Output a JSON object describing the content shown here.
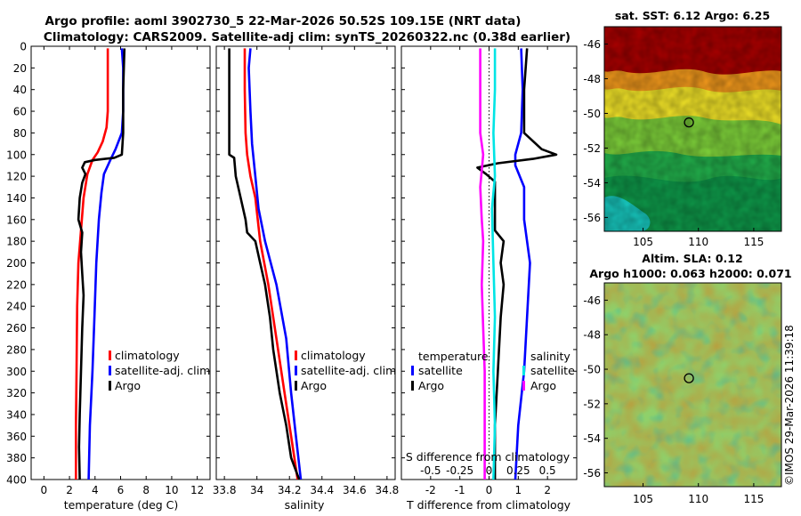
{
  "title_line1": "Argo profile: aoml 3902730_5 22-Mar-2026 50.52S 109.15E (NRT data)",
  "title_line2": "Climatology: CARS2009. Satellite-adj clim: synTS_20260322.nc (0.38d earlier)",
  "copyright": "©IMOS 29-Mar-2026 11:39:18",
  "colors": {
    "climatology": "#ff0000",
    "satellite": "#0000ff",
    "argo": "#000000",
    "sal_satellite": "#00e5e5",
    "sal_argo": "#ff00ff"
  },
  "chart_data": [
    {
      "id": "temperature",
      "type": "line",
      "xlabel": "temperature (deg C)",
      "ylabel": "",
      "xlim": [
        -1,
        13
      ],
      "ylim": [
        400,
        0
      ],
      "xticks": [
        0,
        2,
        4,
        6,
        8,
        10,
        12
      ],
      "xtick_labels": [
        "0",
        "2",
        "4",
        "6",
        "8",
        "10",
        "12"
      ],
      "yticks": [
        0,
        20,
        40,
        60,
        80,
        100,
        120,
        140,
        160,
        180,
        200,
        220,
        240,
        260,
        280,
        300,
        320,
        340,
        360,
        380,
        400
      ],
      "legend": [
        "climatology",
        "satellite-adj. clim",
        "Argo"
      ],
      "series": [
        {
          "name": "climatology",
          "color": "#ff0000",
          "points": [
            [
              5.0,
              2
            ],
            [
              5.0,
              20
            ],
            [
              5.0,
              60
            ],
            [
              4.9,
              75
            ],
            [
              4.6,
              88
            ],
            [
              4.2,
              98
            ],
            [
              3.8,
              105
            ],
            [
              3.4,
              118
            ],
            [
              3.1,
              140
            ],
            [
              2.9,
              170
            ],
            [
              2.7,
              200
            ],
            [
              2.6,
              240
            ],
            [
              2.55,
              300
            ],
            [
              2.5,
              350
            ],
            [
              2.5,
              400
            ]
          ]
        },
        {
          "name": "satellite-adj. clim",
          "color": "#0000ff",
          "points": [
            [
              6.1,
              2
            ],
            [
              6.2,
              20
            ],
            [
              6.2,
              60
            ],
            [
              6.1,
              80
            ],
            [
              5.6,
              95
            ],
            [
              5.2,
              105
            ],
            [
              4.7,
              118
            ],
            [
              4.5,
              135
            ],
            [
              4.3,
              160
            ],
            [
              4.1,
              200
            ],
            [
              3.95,
              250
            ],
            [
              3.8,
              300
            ],
            [
              3.6,
              350
            ],
            [
              3.5,
              400
            ]
          ]
        },
        {
          "name": "Argo",
          "color": "#000000",
          "points": [
            [
              6.3,
              2
            ],
            [
              6.2,
              40
            ],
            [
              6.2,
              80
            ],
            [
              6.1,
              100
            ],
            [
              5.5,
              103
            ],
            [
              4.0,
              105
            ],
            [
              3.2,
              107
            ],
            [
              3.0,
              112
            ],
            [
              3.25,
              118
            ],
            [
              3.0,
              126
            ],
            [
              2.8,
              140
            ],
            [
              2.7,
              160
            ],
            [
              3.0,
              172
            ],
            [
              2.9,
              190
            ],
            [
              3.0,
              210
            ],
            [
              3.1,
              230
            ],
            [
              3.0,
              260
            ],
            [
              2.9,
              300
            ],
            [
              2.8,
              340
            ],
            [
              2.75,
              370
            ],
            [
              2.8,
              400
            ]
          ]
        }
      ]
    },
    {
      "id": "salinity",
      "type": "line",
      "xlabel": "salinity",
      "xlim": [
        33.75,
        34.85
      ],
      "ylim": [
        400,
        0
      ],
      "xticks": [
        33.8,
        34.0,
        34.2,
        34.4,
        34.6,
        34.8
      ],
      "xtick_labels": [
        "33.8",
        "34",
        "34.2",
        "34.4",
        "34.6",
        "34.8"
      ],
      "legend": [
        "climatology",
        "satellite-adj. clim",
        "Argo"
      ],
      "series": [
        {
          "name": "climatology",
          "color": "#ff0000",
          "points": [
            [
              33.925,
              2
            ],
            [
              33.925,
              40
            ],
            [
              33.93,
              80
            ],
            [
              33.94,
              100
            ],
            [
              33.96,
              120
            ],
            [
              33.99,
              140
            ],
            [
              34.02,
              180
            ],
            [
              34.07,
              220
            ],
            [
              34.12,
              270
            ],
            [
              34.17,
              320
            ],
            [
              34.21,
              360
            ],
            [
              34.25,
              400
            ]
          ]
        },
        {
          "name": "satellite-adj. clim",
          "color": "#0000ff",
          "points": [
            [
              33.96,
              2
            ],
            [
              33.95,
              20
            ],
            [
              33.96,
              60
            ],
            [
              33.97,
              90
            ],
            [
              33.99,
              120
            ],
            [
              34.01,
              150
            ],
            [
              34.05,
              180
            ],
            [
              34.12,
              220
            ],
            [
              34.18,
              270
            ],
            [
              34.21,
              320
            ],
            [
              34.24,
              360
            ],
            [
              34.27,
              400
            ]
          ]
        },
        {
          "name": "Argo",
          "color": "#000000",
          "points": [
            [
              33.83,
              2
            ],
            [
              33.83,
              40
            ],
            [
              33.83,
              80
            ],
            [
              33.83,
              100
            ],
            [
              33.86,
              103
            ],
            [
              33.87,
              120
            ],
            [
              33.9,
              140
            ],
            [
              33.93,
              160
            ],
            [
              33.94,
              172
            ],
            [
              33.99,
              180
            ],
            [
              34.02,
              200
            ],
            [
              34.05,
              220
            ],
            [
              34.08,
              250
            ],
            [
              34.1,
              280
            ],
            [
              34.14,
              320
            ],
            [
              34.18,
              350
            ],
            [
              34.21,
              380
            ],
            [
              34.26,
              400
            ]
          ]
        }
      ]
    },
    {
      "id": "difference",
      "type": "line",
      "xlabel": "T difference from climatology",
      "xlabel2": "S difference from climatology",
      "xlim": [
        -3,
        3
      ],
      "ylim": [
        400,
        0
      ],
      "xticks": [
        -2,
        -1,
        0,
        1,
        2
      ],
      "xtick_labels": [
        "-2",
        "-1",
        "0",
        "1",
        "2"
      ],
      "xticks2": [
        -2,
        -1,
        0,
        1,
        2
      ],
      "xtick2_labels": [
        "-0.5",
        "-0.25",
        "0",
        "0.25",
        "0.5"
      ],
      "legend_temperature": {
        "title": "temperature",
        "entries": [
          "satellite",
          "Argo"
        ]
      },
      "legend_salinity": {
        "title": "salinity",
        "entries": [
          "satellite",
          "Argo"
        ]
      },
      "series": [
        {
          "name": "T satellite",
          "color": "#0000ff",
          "points": [
            [
              1.1,
              2
            ],
            [
              1.15,
              40
            ],
            [
              1.1,
              80
            ],
            [
              0.9,
              100
            ],
            [
              0.9,
              110
            ],
            [
              1.2,
              130
            ],
            [
              1.2,
              160
            ],
            [
              1.4,
              200
            ],
            [
              1.3,
              250
            ],
            [
              1.2,
              300
            ],
            [
              1.0,
              350
            ],
            [
              0.9,
              400
            ]
          ]
        },
        {
          "name": "T Argo",
          "color": "#000000",
          "points": [
            [
              1.3,
              2
            ],
            [
              1.2,
              40
            ],
            [
              1.2,
              80
            ],
            [
              1.8,
              95
            ],
            [
              2.3,
              100
            ],
            [
              1.5,
              104
            ],
            [
              0.3,
              108
            ],
            [
              -0.4,
              112
            ],
            [
              -0.1,
              118
            ],
            [
              0.2,
              125
            ],
            [
              0.2,
              150
            ],
            [
              0.2,
              170
            ],
            [
              0.5,
              180
            ],
            [
              0.4,
              200
            ],
            [
              0.5,
              220
            ],
            [
              0.4,
              250
            ],
            [
              0.3,
              300
            ],
            [
              0.2,
              350
            ],
            [
              0.2,
              400
            ]
          ]
        },
        {
          "name": "S satellite",
          "color": "#00e5e5",
          "points": [
            [
              0.2,
              2
            ],
            [
              0.2,
              40
            ],
            [
              0.15,
              80
            ],
            [
              0.2,
              120
            ],
            [
              0.1,
              150
            ],
            [
              0.15,
              200
            ],
            [
              0.2,
              250
            ],
            [
              0.15,
              300
            ],
            [
              0.2,
              350
            ],
            [
              0.15,
              400
            ]
          ]
        },
        {
          "name": "S Argo",
          "color": "#ff00ff",
          "points": [
            [
              -0.3,
              2
            ],
            [
              -0.3,
              40
            ],
            [
              -0.3,
              80
            ],
            [
              -0.2,
              100
            ],
            [
              -0.3,
              130
            ],
            [
              -0.25,
              160
            ],
            [
              -0.2,
              180
            ],
            [
              -0.25,
              220
            ],
            [
              -0.2,
              260
            ],
            [
              -0.15,
              300
            ],
            [
              -0.15,
              350
            ],
            [
              -0.15,
              400
            ]
          ]
        }
      ]
    },
    {
      "id": "sst_map",
      "type": "heatmap",
      "title": "sat. SST: 6.12 Argo: 6.25",
      "xlim": [
        101.5,
        117.5
      ],
      "ylim": [
        -56.8,
        -45
      ],
      "xticks": [
        105,
        110,
        115
      ],
      "xtick_labels": [
        "105",
        "110",
        "115"
      ],
      "yticks": [
        -46,
        -48,
        -50,
        -52,
        -54,
        -56
      ],
      "ytick_labels": [
        "-46",
        "-48",
        "-50",
        "-52",
        "-54",
        "-56"
      ],
      "argo_position": [
        109.15,
        -50.52
      ]
    },
    {
      "id": "sla_map",
      "type": "heatmap",
      "title": "Altim. SLA: 0.12",
      "subtitle": "Argo h1000: 0.063 h2000: 0.071",
      "xlim": [
        101.5,
        117.5
      ],
      "ylim": [
        -56.8,
        -45
      ],
      "xticks": [
        105,
        110,
        115
      ],
      "xtick_labels": [
        "105",
        "110",
        "115"
      ],
      "yticks": [
        -46,
        -48,
        -50,
        -52,
        -54,
        -56
      ],
      "ytick_labels": [
        "-46",
        "-48",
        "-50",
        "-52",
        "-54",
        "-56"
      ],
      "argo_position": [
        109.15,
        -50.52
      ]
    }
  ]
}
